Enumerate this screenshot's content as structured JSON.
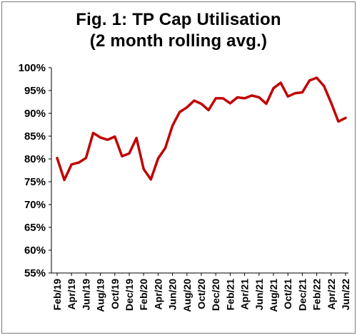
{
  "chart_data": {
    "type": "line",
    "title": "Fig. 1: TP Cap Utilisation",
    "subtitle": "(2 month rolling avg.)",
    "xlabel": "",
    "ylabel": "",
    "ylim": [
      55,
      100
    ],
    "y_ticks": [
      "55%",
      "60%",
      "65%",
      "70%",
      "75%",
      "80%",
      "85%",
      "90%",
      "95%",
      "100%"
    ],
    "x_tick_labels": [
      "Feb/19",
      "Apr/19",
      "Jun/19",
      "Aug/19",
      "Oct/19",
      "Dec/19",
      "Feb/20",
      "Apr/20",
      "Jun/20",
      "Aug/20",
      "Oct/20",
      "Dec/20",
      "Feb/21",
      "Apr/21",
      "Jun/21",
      "Aug/21",
      "Oct/21",
      "Dec/21",
      "Feb/22",
      "Apr/22",
      "Jun/22"
    ],
    "grid": false,
    "series": [
      {
        "color": "#c00000",
        "x": [
          "Feb/19",
          "Mar/19",
          "Apr/19",
          "May/19",
          "Jun/19",
          "Jul/19",
          "Aug/19",
          "Sep/19",
          "Oct/19",
          "Nov/19",
          "Dec/19",
          "Jan/20",
          "Feb/20",
          "Mar/20",
          "Apr/20",
          "May/20",
          "Jun/20",
          "Jul/20",
          "Aug/20",
          "Sep/20",
          "Oct/20",
          "Nov/20",
          "Dec/20",
          "Jan/21",
          "Feb/21",
          "Mar/21",
          "Apr/21",
          "May/21",
          "Jun/21",
          "Jul/21",
          "Aug/21",
          "Sep/21",
          "Oct/21",
          "Nov/21",
          "Dec/21",
          "Jan/22",
          "Feb/22",
          "Mar/22",
          "Apr/22",
          "May/22",
          "Jun/22"
        ],
        "values": [
          80.2,
          75.4,
          78.8,
          79.2,
          80.2,
          85.7,
          84.7,
          84.2,
          84.9,
          80.6,
          81.2,
          84.6,
          77.8,
          75.5,
          80.1,
          82.4,
          87.3,
          90.3,
          91.3,
          92.8,
          92.1,
          90.7,
          93.3,
          93.3,
          92.2,
          93.5,
          93.3,
          93.9,
          93.5,
          92.1,
          95.5,
          96.7,
          93.7,
          94.4,
          94.6,
          97.2,
          97.8,
          96.0,
          92.3,
          88.2,
          89.0
        ]
      }
    ]
  }
}
